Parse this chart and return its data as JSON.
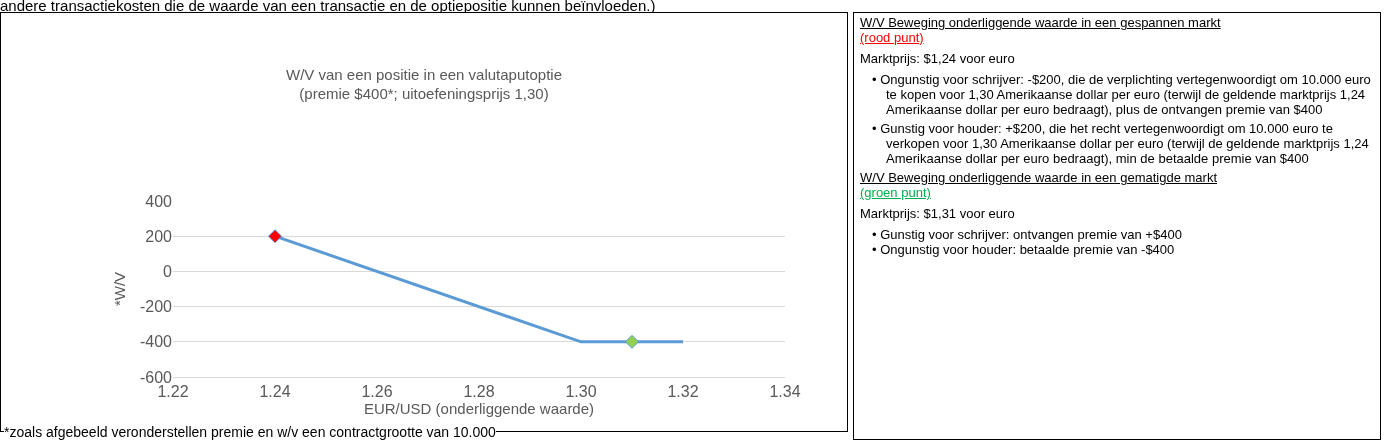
{
  "chart_data": [
    {
      "type": "line",
      "title": "W/V van een positie in een valutaputoptie\n(premie $400*; uitoefeningsprijs 1,30)",
      "xlabel": "EUR/USD (onderliggende waarde)",
      "ylabel": "*W/V",
      "series": [
        {
          "type": "line",
          "color": "#5b9bd5",
          "x": [
            1.24,
            1.3,
            1.32
          ],
          "values": [
            200,
            -400,
            -400
          ],
          "marker": "none"
        },
        {
          "type": "scatter",
          "color": "#ff0000",
          "x": [
            1.24
          ],
          "values": [
            200
          ],
          "marker": "diamond"
        },
        {
          "type": "scatter",
          "color": "#92d050",
          "x": [
            1.31
          ],
          "values": [
            -400
          ],
          "marker": "diamond"
        }
      ],
      "xlim": [
        1.22,
        1.34
      ],
      "xticks": [
        1.22,
        1.24,
        1.26,
        1.28,
        {
          "value": 1.3,
          "label": "1.30"
        },
        1.32,
        1.34
      ],
      "ylim": [
        -600,
        400
      ],
      "yticks": [
        -600,
        -400,
        -200,
        0,
        200,
        400
      ],
      "grid": "y",
      "annotations": [
        "andere transactiekosten die de waarde van een transactie en de optiepositie kunnen beïnvloeden.)",
        "*zoals afgebeeld veronderstellen premie en w/v een contractgrootte van 10.000"
      ]
    },
    {
      "type": "other",
      "annotations": [
        "W/V Beweging onderliggende waarde in een gespannen markt",
        "(rood punt)",
        "Marktprijs: $1,24 voor euro",
        "• Ongunstig voor schrijver: -$200, die de verplichting vertegenwoordigt om 10.000 euro te kopen voor 1,30 Amerikaanse dollar per euro (terwijl de geldende marktprijs 1,24 Amerikaanse dollar per euro bedraagt), plus de ontvangen premie van $400",
        "• Gunstig voor houder: +$200, die het recht vertegenwoordigt om 10.000 euro te verkopen voor 1,30 Amerikaanse dollar per euro (terwijl de geldende marktprijs 1,24 Amerikaanse dollar per euro bedraagt), min de betaalde premie van $400",
        "W/V Beweging onderliggende waarde in een gematigde markt",
        "(groen punt)",
        "Marktprijs: $1,31 voor euro",
        "• Gunstig voor schrijver: ontvangen premie van +$400",
        "• Ongunstig voor houder: betaalde premie van -$400"
      ]
    }
  ]
}
